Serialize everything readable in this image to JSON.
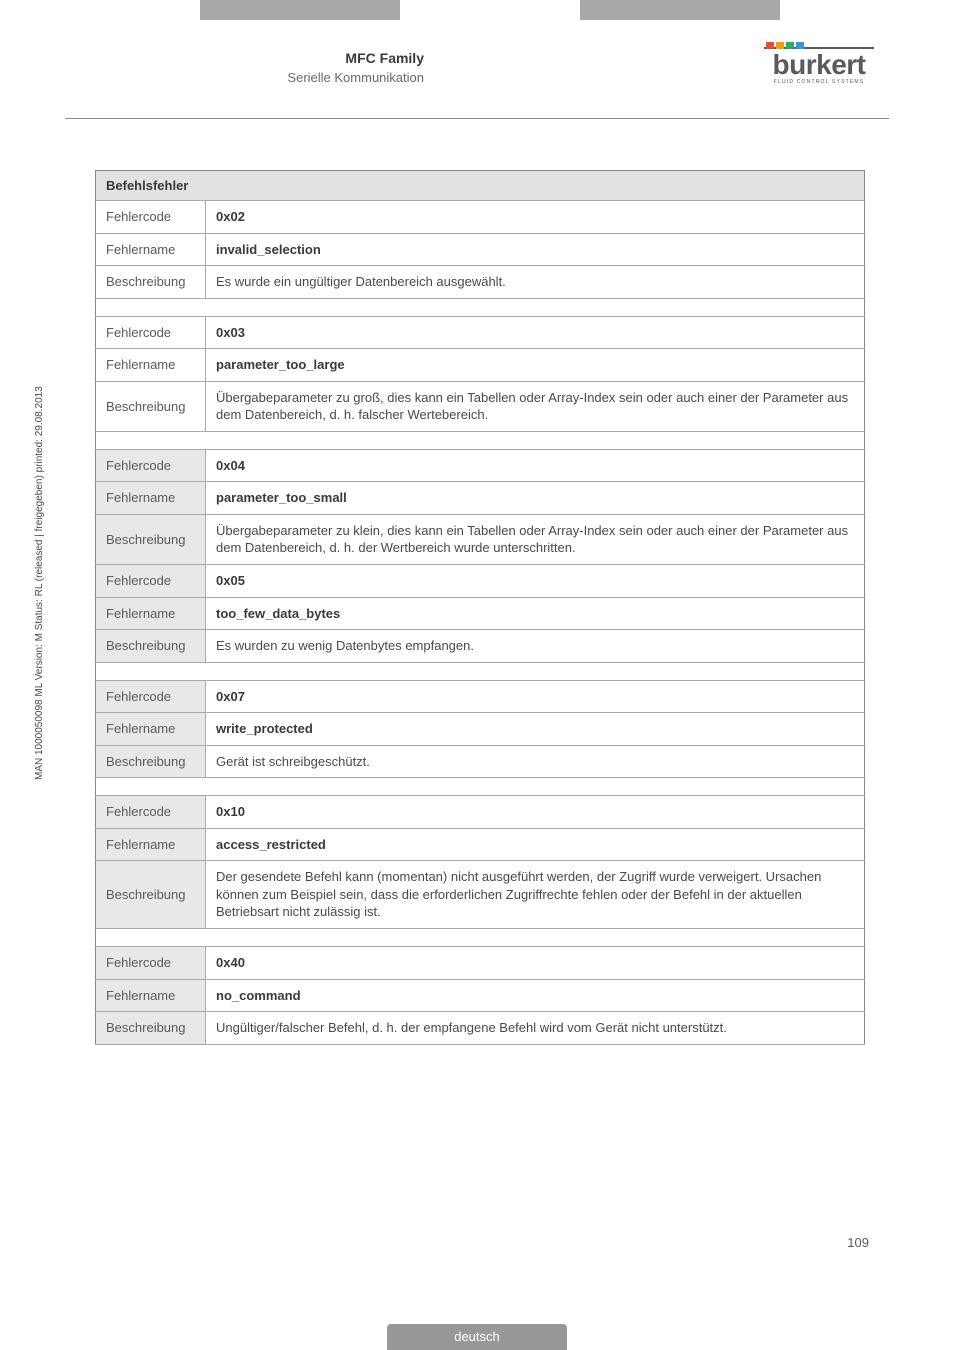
{
  "header": {
    "title": "MFC Family",
    "subtitle": "Serielle Kommunikation",
    "logo_text": "burkert",
    "logo_sub": "FLUID CONTROL SYSTEMS",
    "bar_colors": [
      "#e74c3c",
      "#f39c12",
      "#27ae60",
      "#3498db"
    ]
  },
  "table": {
    "header": "Befehlsfehler",
    "labels": {
      "code": "Fehlercode",
      "name": "Fehlername",
      "desc": "Beschreibung"
    },
    "groups": [
      {
        "code": "0x02",
        "name": "invalid_selection",
        "desc": "Es wurde ein ungültiger Datenbereich ausgewählt.",
        "shade": false,
        "spacer_after": true
      },
      {
        "code": "0x03",
        "name": "parameter_too_large",
        "desc": "Übergabeparameter zu groß, dies kann ein Tabellen oder Array-Index sein oder auch einer der Parameter aus dem Datenbereich, d. h. falscher Wertebereich.",
        "shade": false,
        "spacer_after": true
      },
      {
        "code": "0x04",
        "name": "parameter_too_small",
        "desc": "Übergabeparameter zu klein, dies kann ein Tabellen oder Array-Index sein oder auch einer der Parameter aus dem Datenbereich, d. h. der Wertbereich wurde unterschritten.",
        "shade": true,
        "spacer_after": false
      },
      {
        "code": "0x05",
        "name": "too_few_data_bytes",
        "desc": "Es wurden zu wenig Datenbytes empfangen.",
        "shade": true,
        "spacer_after": true
      },
      {
        "code": "0x07",
        "name": "write_protected",
        "desc": "Gerät ist schreibgeschützt.",
        "shade": true,
        "spacer_after": true
      },
      {
        "code": "0x10",
        "name": "access_restricted",
        "desc": "Der gesendete Befehl kann (momentan) nicht ausgeführt werden, der Zugriff wurde verweigert. Ursachen können zum Beispiel sein, dass die erforderlichen Zugriffrechte fehlen oder der Befehl in der aktuellen Betriebsart nicht zulässig ist.",
        "shade": true,
        "spacer_after": true
      },
      {
        "code": "0x40",
        "name": "no_command",
        "desc": "Ungültiger/falscher Befehl, d. h. der empfangene Befehl wird vom Gerät nicht unterstützt.",
        "shade": true,
        "spacer_after": false
      }
    ]
  },
  "side_text": "MAN 1000050098 ML Version: M Status: RL (released | freigegeben) printed: 29.08.2013",
  "page_number": "109",
  "footer_lang": "deutsch",
  "colors": {
    "tab_bg": "#a8a8a8",
    "shade_bg": "#e8e8e8",
    "header_bg": "#e2e2e2",
    "border": "#aaaaaa",
    "text": "#4a4a4a"
  }
}
